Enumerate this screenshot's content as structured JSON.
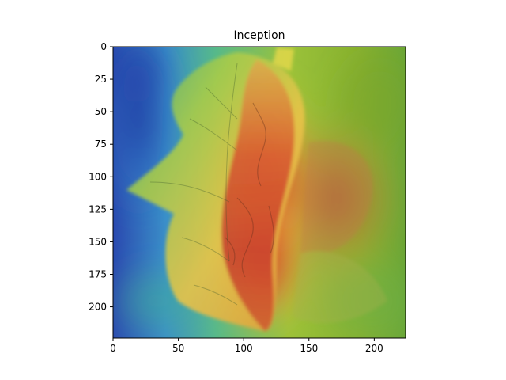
{
  "chart_data": {
    "type": "heatmap",
    "title": "Inception",
    "xlabel": "",
    "ylabel": "",
    "xlim": [
      0,
      224
    ],
    "ylim": [
      224,
      0
    ],
    "x_ticks": [
      0,
      50,
      100,
      150,
      200
    ],
    "y_ticks": [
      0,
      25,
      50,
      75,
      100,
      125,
      150,
      175,
      200
    ],
    "grid": false,
    "colormap": "jet",
    "colormap_stops": [
      "#1e2fa8",
      "#2f7fd6",
      "#3bb39a",
      "#8cc23c",
      "#e8d83a",
      "#f0932e",
      "#d6342a"
    ],
    "overlay_image": "leaf-photo",
    "hotspots": [
      {
        "x": 118,
        "y": 150,
        "intensity": 1.0
      },
      {
        "x": 115,
        "y": 95,
        "intensity": 0.95
      },
      {
        "x": 165,
        "y": 110,
        "intensity": 0.6
      }
    ],
    "cold_regions": [
      {
        "x": 10,
        "y": 60,
        "intensity": 0.0
      },
      {
        "x": 25,
        "y": 20,
        "intensity": 0.05
      }
    ]
  }
}
